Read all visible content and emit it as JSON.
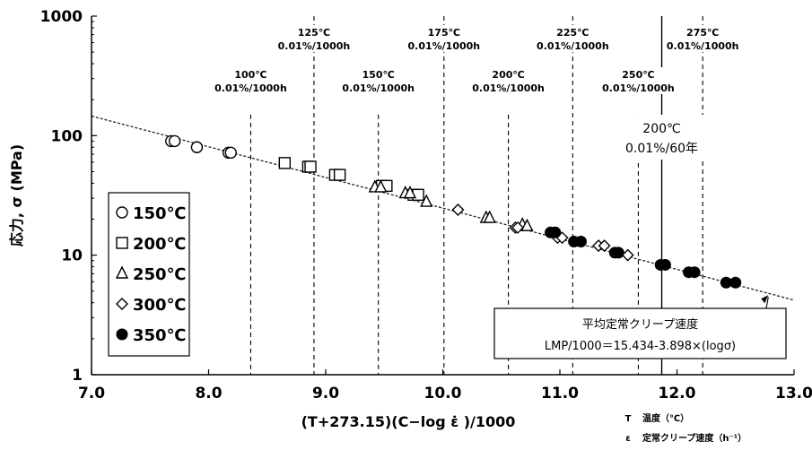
{
  "chart_data": {
    "type": "scatter",
    "title": "",
    "xlabel": "(T+273.15)(C−log ε̇ )/1000",
    "ylabel": "応力, σ (MPa)",
    "xlim": [
      7.0,
      13.0
    ],
    "ylim": [
      1,
      1000
    ],
    "yscale": "log",
    "grid": false,
    "x_ticks": [
      "7.0",
      "8.0",
      "9.0",
      "10.0",
      "11.0",
      "12.0",
      "13.0"
    ],
    "y_ticks": [
      "1",
      "10",
      "100",
      "1000"
    ],
    "legend": {
      "position": "left",
      "entries": [
        "150℃",
        "200℃",
        "250℃",
        "300℃",
        "350℃"
      ]
    },
    "series": [
      {
        "name": "150℃",
        "marker": "circle-open",
        "points": [
          [
            7.68,
            90
          ],
          [
            7.71,
            90
          ],
          [
            7.9,
            80
          ],
          [
            8.17,
            72
          ],
          [
            8.19,
            72
          ]
        ]
      },
      {
        "name": "200℃",
        "marker": "square-open",
        "points": [
          [
            8.65,
            59
          ],
          [
            8.85,
            55
          ],
          [
            8.87,
            55
          ],
          [
            9.08,
            47
          ],
          [
            9.12,
            47
          ],
          [
            9.48,
            38
          ],
          [
            9.52,
            38
          ],
          [
            9.75,
            32
          ],
          [
            9.79,
            32
          ]
        ]
      },
      {
        "name": "250℃",
        "marker": "triangle-open",
        "points": [
          [
            9.42,
            37
          ],
          [
            9.47,
            37
          ],
          [
            9.68,
            33
          ],
          [
            9.72,
            33
          ],
          [
            9.86,
            28
          ],
          [
            10.37,
            20.5
          ],
          [
            10.4,
            20.5
          ],
          [
            10.68,
            18
          ],
          [
            10.72,
            17.5
          ]
        ]
      },
      {
        "name": "300℃",
        "marker": "diamond-open",
        "points": [
          [
            10.13,
            24
          ],
          [
            10.62,
            17
          ],
          [
            10.64,
            17
          ],
          [
            10.98,
            14
          ],
          [
            11.02,
            14
          ],
          [
            11.33,
            12
          ],
          [
            11.38,
            12
          ],
          [
            11.58,
            10
          ]
        ]
      },
      {
        "name": "350℃",
        "marker": "circle-filled",
        "points": [
          [
            10.92,
            15.5
          ],
          [
            10.96,
            15.5
          ],
          [
            11.12,
            13
          ],
          [
            11.18,
            13
          ],
          [
            11.47,
            10.5
          ],
          [
            11.5,
            10.5
          ],
          [
            11.86,
            8.3
          ],
          [
            11.9,
            8.3
          ],
          [
            12.1,
            7.2
          ],
          [
            12.15,
            7.2
          ],
          [
            12.42,
            5.9
          ],
          [
            12.5,
            5.9
          ]
        ]
      }
    ],
    "fit_line": {
      "style": "dashed",
      "equation": "LMP/1000＝15.434-3.898×(logσ)",
      "intercept": 15.434,
      "slope": -3.898,
      "x_range": [
        7.0,
        13.0
      ]
    },
    "vertical_markers": [
      {
        "x": 8.36,
        "label": [
          "100℃",
          "0.01%/1000h"
        ],
        "style": "dashed",
        "y_top": 150
      },
      {
        "x": 8.9,
        "label": [
          "125℃",
          "0.01%/1000h"
        ],
        "style": "dashed",
        "y_top": 1000
      },
      {
        "x": 9.45,
        "label": [
          "150℃",
          "0.01%/1000h"
        ],
        "style": "dashed",
        "y_top": 150
      },
      {
        "x": 10.01,
        "label": [
          "175℃",
          "0.01%/1000h"
        ],
        "style": "dashed",
        "y_top": 1000
      },
      {
        "x": 10.56,
        "label": [
          "200℃",
          "0.01%/1000h"
        ],
        "style": "dashed",
        "y_top": 150
      },
      {
        "x": 11.11,
        "label": [
          "225℃",
          "0.01%/1000h"
        ],
        "style": "dashed",
        "y_top": 1000
      },
      {
        "x": 11.67,
        "label": [
          "250℃",
          "0.01%/1000h"
        ],
        "style": "dashed",
        "y_top": 150
      },
      {
        "x": 12.22,
        "label": [
          "275℃",
          "0.01%/1000h"
        ],
        "style": "dashed",
        "y_top": 1000
      },
      {
        "x": 11.87,
        "label": [
          "200℃",
          "0.01%/60年"
        ],
        "style": "solid",
        "y_top": 1000
      }
    ],
    "annotation_box": {
      "line1": "平均定常クリープ速度",
      "line2": "LMP/1000＝15.434-3.898×(logσ)"
    },
    "footnotes": [
      {
        "symbol": "T",
        "text": "温度（℃）"
      },
      {
        "symbol": "ε",
        "text": "定常クリープ速度（h⁻¹）"
      }
    ]
  }
}
